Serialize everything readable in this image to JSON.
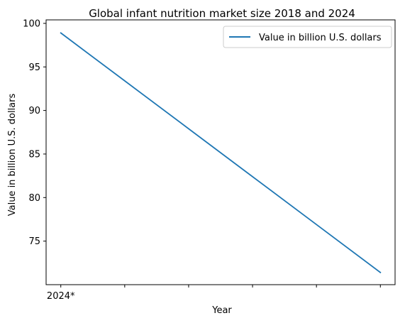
{
  "chart_data": {
    "type": "line",
    "title": "Global infant nutrition market size 2018 and 2024",
    "xlabel": "Year",
    "ylabel": "Value in billion U.S. dollars",
    "x": [
      0,
      1,
      2,
      3,
      4,
      5
    ],
    "x_tick_labels": [
      "2024*",
      "",
      "",
      "",
      "",
      ""
    ],
    "y_ticks": [
      75,
      80,
      85,
      90,
      95,
      100
    ],
    "y_tick_labels": [
      "75",
      "80",
      "85",
      "90",
      "95",
      "100"
    ],
    "ylim": [
      70.0,
      100.4
    ],
    "xlim": [
      -0.23,
      5.23
    ],
    "grid": false,
    "legend_position": "top-right",
    "series": [
      {
        "name": "Value in billion U.S. dollars",
        "color": "#1f77b4",
        "values": [
          98.9,
          93.4,
          87.9,
          82.4,
          76.9,
          71.4
        ]
      }
    ]
  }
}
